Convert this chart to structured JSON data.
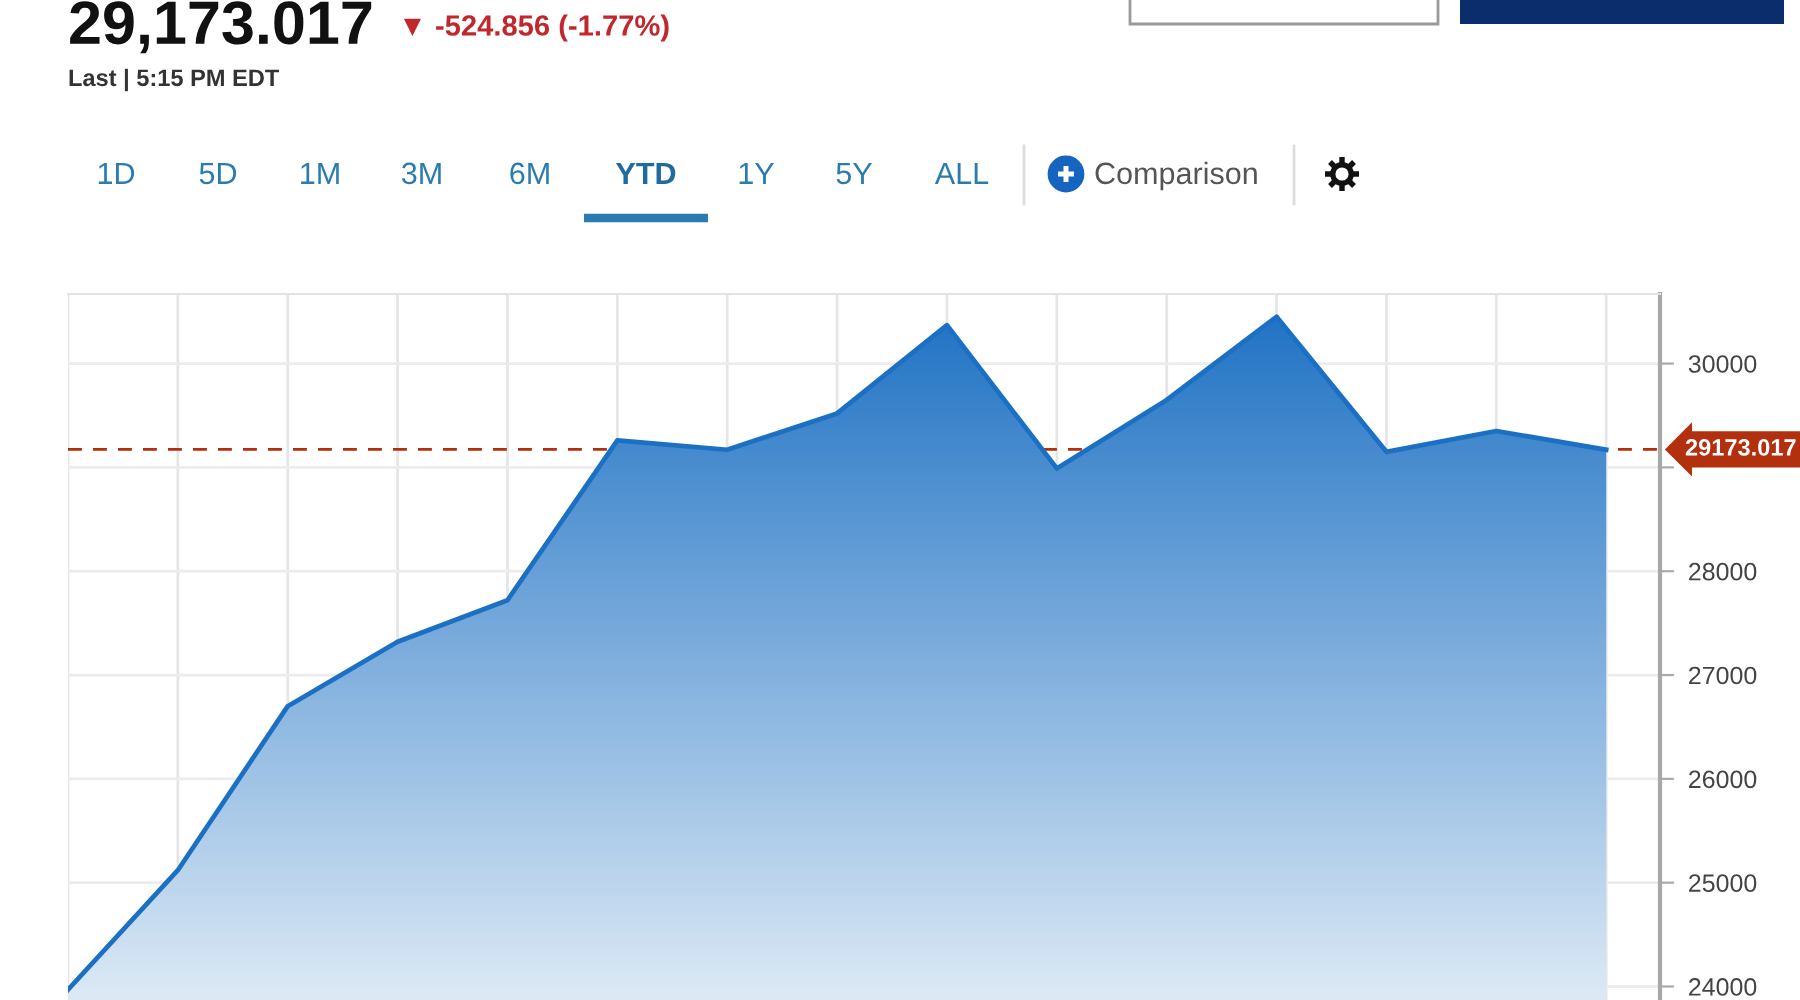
{
  "chart_data": {
    "type": "area",
    "title": "29,173.017",
    "subtitle": "▼ -524.856 (-1.77%)",
    "annotations": [
      "Last | 5:15 PM EDT",
      "1D",
      "5D",
      "1M",
      "3M",
      "6M",
      "YTD",
      "1Y",
      "5Y",
      "ALL",
      "Comparison"
    ],
    "categories": [
      null,
      null,
      null,
      null,
      null,
      null,
      null,
      null,
      null,
      null,
      null,
      null,
      null,
      null,
      null
    ],
    "values": [
      23970,
      25120,
      26700,
      27320,
      27720,
      29260,
      29170,
      29520,
      30370,
      28990,
      29650,
      30450,
      29150,
      29350,
      29170
    ],
    "color": "#1c70c4",
    "ylim": [
      23870,
      30670
    ],
    "yticks": [
      24000,
      25000,
      26000,
      27000,
      28000,
      {
        "value": 29000,
        "label": null
      },
      30000
    ],
    "ref_lines": [
      {
        "axis": "y",
        "value": 29173.017,
        "label": "29173.017",
        "color": "#b3300f",
        "line_style": "dashed"
      }
    ],
    "grid": true,
    "tick_labels": "y"
  }
}
